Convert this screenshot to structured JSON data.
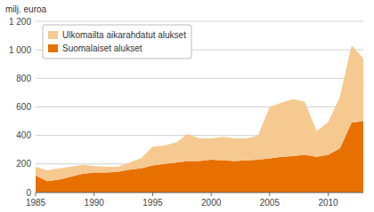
{
  "chart_data": {
    "type": "area",
    "stacked": true,
    "y_label": "milj. euroa",
    "x": [
      1985,
      1986,
      1987,
      1988,
      1989,
      1990,
      1991,
      1992,
      1993,
      1994,
      1995,
      1996,
      1997,
      1998,
      1999,
      2000,
      2001,
      2002,
      2003,
      2004,
      2005,
      2006,
      2007,
      2008,
      2009,
      2010,
      2011,
      2012,
      2013
    ],
    "series": [
      {
        "name": "Suomalaiset alukset",
        "color": "#e87000",
        "values": [
          120,
          80,
          90,
          110,
          130,
          140,
          140,
          145,
          160,
          170,
          190,
          200,
          210,
          220,
          220,
          230,
          225,
          220,
          225,
          230,
          240,
          250,
          255,
          265,
          250,
          265,
          310,
          490,
          500
        ]
      },
      {
        "name": "Ulkomailta aikarahdatut alukset",
        "color": "#f5c990",
        "values": [
          60,
          75,
          80,
          70,
          65,
          45,
          40,
          35,
          50,
          70,
          130,
          130,
          140,
          190,
          160,
          150,
          165,
          160,
          155,
          170,
          360,
          380,
          400,
          370,
          180,
          230,
          360,
          540,
          440
        ]
      }
    ],
    "xlim": [
      1985,
      2013
    ],
    "xticks": [
      1985,
      1990,
      1995,
      2000,
      2005,
      2010
    ],
    "ylim": [
      0,
      1200
    ],
    "yticks": [
      0,
      200,
      400,
      600,
      800,
      {
        "value": 1000,
        "label": "1 000"
      },
      {
        "value": 1200,
        "label": "1 200"
      }
    ],
    "grid": true,
    "legend": "upper left"
  }
}
